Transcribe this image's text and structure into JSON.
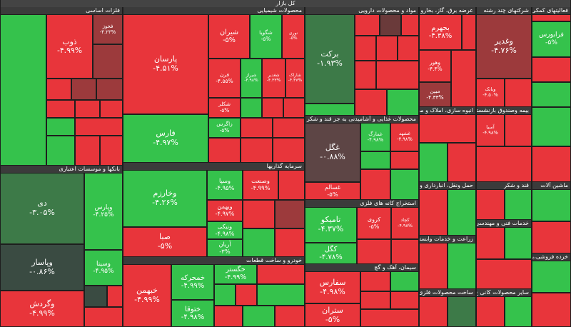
{
  "header": {
    "title": "کل بازار"
  },
  "sectors": [
    {
      "title": "فلزات اساسی",
      "tiles": [
        {
          "symbol": "ذوب",
          "change": "-۴.۹۹%"
        },
        {
          "symbol": "فخوز",
          "change": "-۴.۲۳%"
        }
      ]
    },
    {
      "title": "بانکها و موسسات اعتباری",
      "tiles": [
        {
          "symbol": "دی",
          "change": "-۳.۰۵%"
        },
        {
          "symbol": "وپاسار",
          "change": "-۰.۸۶%"
        },
        {
          "symbol": "وگردش",
          "change": "-۴.۹۹%"
        },
        {
          "symbol": "وپارس",
          "change": "-۴.۲۵%"
        },
        {
          "symbol": "وسینا",
          "change": "-۴.۹۵%"
        }
      ]
    },
    {
      "title": "محصولات شیمیایی",
      "tiles": [
        {
          "symbol": "پارسان",
          "change": "-۴.۵۱%"
        },
        {
          "symbol": "فارس",
          "change": "-۴.۹۷%"
        },
        {
          "symbol": "شیران",
          "change": "-۵%"
        },
        {
          "symbol": "شگویا",
          "change": "-۵%"
        },
        {
          "symbol": "نوری",
          "change": "-۵%"
        },
        {
          "symbol": "فرن",
          "change": "-۴.۵۵%"
        },
        {
          "symbol": "شیراز",
          "change": "-۴.۹۸%"
        },
        {
          "symbol": "شغدیر",
          "change": "-۴.۳۳%"
        },
        {
          "symbol": "شاراک",
          "change": "-۴.۴۷%"
        },
        {
          "symbol": "شکلر",
          "change": "-۵%"
        },
        {
          "symbol": "زاگرس",
          "change": "-۵%"
        }
      ]
    },
    {
      "title": "سرمایه گذاریها",
      "tiles": [
        {
          "symbol": "وخارزم",
          "change": "-۴.۲۶%"
        },
        {
          "symbol": "صبا",
          "change": "-۵%"
        },
        {
          "symbol": "وسپا",
          "change": "-۴.۹۵%"
        },
        {
          "symbol": "وصنعت",
          "change": "-۴.۹۹%"
        },
        {
          "symbol": "وبهمن",
          "change": "-۴.۹۷%"
        },
        {
          "symbol": "ونیکی",
          "change": "-۴.۹۸%"
        },
        {
          "symbol": "آریان",
          "change": "-۳%"
        }
      ]
    },
    {
      "title": "خودرو و ساخت قطعات",
      "tiles": [
        {
          "symbol": "خبهمن",
          "change": "-۴.۹۹%"
        },
        {
          "symbol": "خمحرکه",
          "change": "-۴.۹۹%"
        },
        {
          "symbol": "خگستر",
          "change": "-۴.۹۹%"
        },
        {
          "symbol": "ختوقا",
          "change": "-۴.۹۸%"
        }
      ]
    },
    {
      "title": "مواد و محصولات دارویی",
      "tiles": [
        {
          "symbol": "برکت",
          "change": "-۱.۹۳%"
        }
      ]
    },
    {
      "title": "محصولات غذایی و آشامیدنی به جز قند و شکر",
      "tiles": [
        {
          "symbol": "غگل",
          "change": "-۰.۸۸%"
        },
        {
          "symbol": "غسالم",
          "change": "-۵%"
        },
        {
          "symbol": "غمارگ",
          "change": "-۴.۹۸%"
        },
        {
          "symbol": "غشهد",
          "change": "-۴.۹۸%"
        }
      ]
    },
    {
      "title": "استخراج کانه های فلزی",
      "tiles": [
        {
          "symbol": "تامیکو",
          "change": "-۴.۳۷%"
        },
        {
          "symbol": "کگل",
          "change": "-۴.۷۸%"
        },
        {
          "symbol": "کروی",
          "change": "-۵%"
        },
        {
          "symbol": "کچاد",
          "change": "-۴.۹۸%"
        }
      ]
    },
    {
      "title": "سیمان، آهک و گچ",
      "tiles": [
        {
          "symbol": "سفارس",
          "change": "-۴.۹۸%"
        },
        {
          "symbol": "ستران",
          "change": "-۵%"
        }
      ]
    },
    {
      "title": "عرضه برق، گاز، بخارو",
      "tiles": [
        {
          "symbol": "بجهرم",
          "change": "-۴.۳۸%"
        },
        {
          "symbol": "وهور",
          "change": "-۴.۴%"
        },
        {
          "symbol": "مبین",
          "change": "-۴.۳۳%"
        }
      ]
    },
    {
      "title": "شرکتهای چند رشته",
      "tiles": [
        {
          "symbol": "وغدیر",
          "change": "-۴.۷۶%"
        },
        {
          "symbol": "وبانک",
          "change": "-۴.۵۰%"
        }
      ]
    },
    {
      "title": "فعالیتهای کمکی به",
      "tiles": [
        {
          "symbol": "فرابورس",
          "change": "-۵%"
        }
      ]
    },
    {
      "title": "انبوه سازی، املاک و مستغلات",
      "tiles": []
    },
    {
      "title": "بیمه وصندوق بازنشستگی",
      "tiles": [
        {
          "symbol": "آسیا",
          "change": "-۴.۹۸%"
        }
      ]
    },
    {
      "title": "حمل ونقل، انبارداری و",
      "tiles": []
    },
    {
      "title": "قند و شکر",
      "tiles": []
    },
    {
      "title": "ماشین آلات",
      "tiles": []
    },
    {
      "title": "خدمات فنی و مهندسی",
      "tiles": []
    },
    {
      "title": "زراعت و خدمات وابسته",
      "tiles": []
    },
    {
      "title": "خرده فروشی،باستثنای",
      "tiles": []
    },
    {
      "title": "ساخت محصولات فلزی",
      "tiles": []
    },
    {
      "title": "سایر محصولات کانی غ",
      "tiles": []
    }
  ]
}
